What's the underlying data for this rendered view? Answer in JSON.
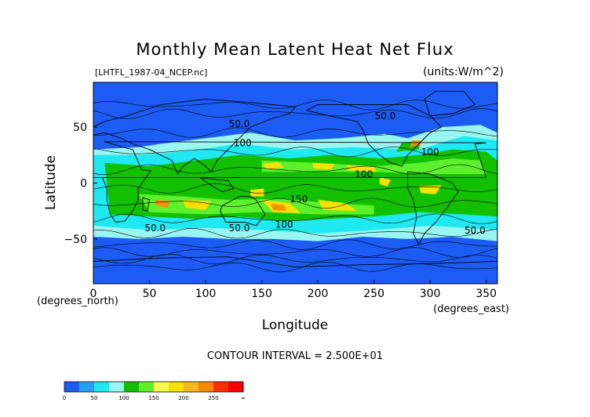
{
  "chart_data": {
    "type": "heatmap",
    "title": "Monthly Mean Latent Heat Net Flux",
    "file_label": "[LHTFL_1987-04_NCEP.nc]",
    "units_label": "(units:W/m^2)",
    "xlabel": "Longitude",
    "ylabel": "Latitude",
    "x_unit_label": "(degrees_east)",
    "y_unit_label": "(degrees_north)",
    "xlim": [
      0,
      360
    ],
    "ylim": [
      -90,
      90
    ],
    "x_ticks": [
      0,
      50,
      100,
      150,
      200,
      250,
      300,
      350
    ],
    "y_ticks": [
      50,
      0,
      -50
    ],
    "contour_interval_label": "CONTOUR INTERVAL = 2.500E+01",
    "contour_labels": [
      {
        "text": "50.0",
        "lon": 130,
        "lat": 50
      },
      {
        "text": "50.0",
        "lon": 260,
        "lat": 57
      },
      {
        "text": "100",
        "lon": 133,
        "lat": 33
      },
      {
        "text": "100",
        "lon": 300,
        "lat": 25
      },
      {
        "text": "100",
        "lon": 241,
        "lat": 5
      },
      {
        "text": "150",
        "lon": 183,
        "lat": -17
      },
      {
        "text": "50.0",
        "lon": 55,
        "lat": -43
      },
      {
        "text": "50.0",
        "lon": 130,
        "lat": -43
      },
      {
        "text": "100",
        "lon": 170,
        "lat": -40
      },
      {
        "text": "50.0",
        "lon": 340,
        "lat": -45
      }
    ],
    "colorbar": {
      "tick_labels": [
        "0",
        "50",
        "100",
        "150",
        "200",
        "250",
        "∞"
      ],
      "colors": [
        "#1c5cf4",
        "#26a0f5",
        "#1fe8f0",
        "#98f5f0",
        "#13c000",
        "#5ef02c",
        "#f8f850",
        "#f8e000",
        "#f8b820",
        "#f88800",
        "#f83000",
        "#f80000"
      ]
    }
  }
}
